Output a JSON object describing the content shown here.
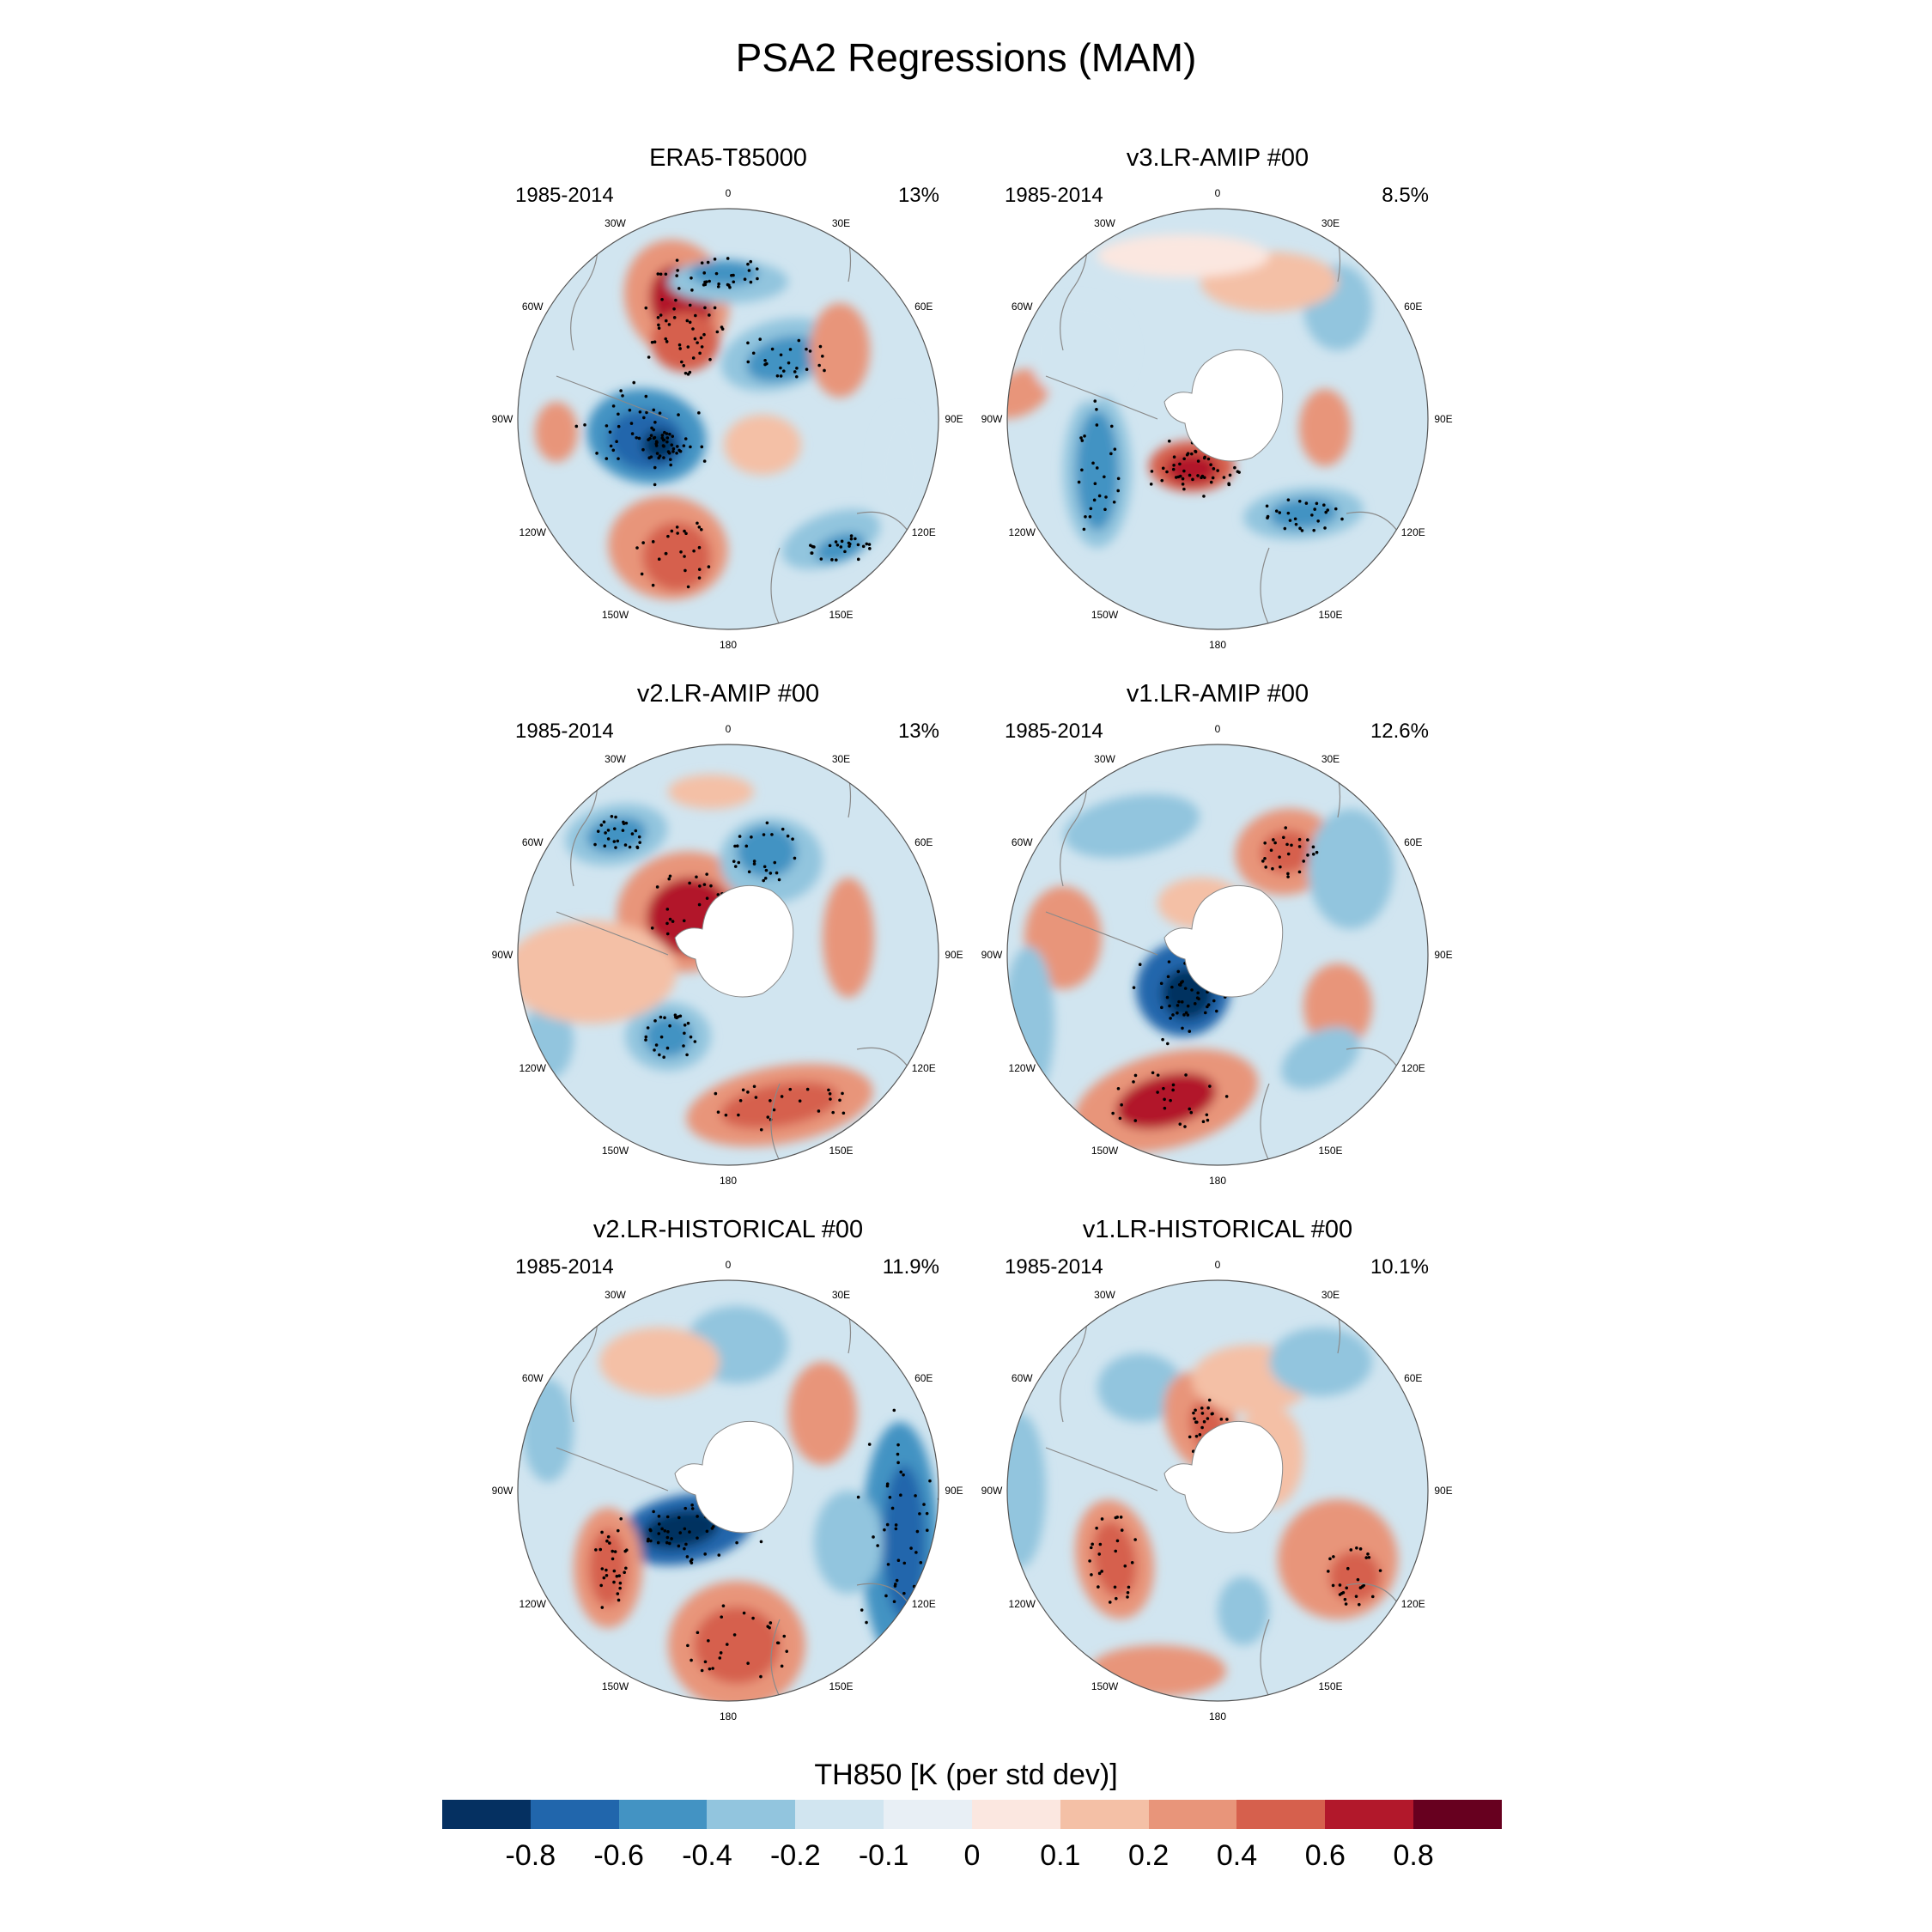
{
  "title": "PSA2 Regressions (MAM)",
  "panels": [
    {
      "title": "ERA5-T85000",
      "period": "1985-2014",
      "variance": "13%"
    },
    {
      "title": "v3.LR-AMIP  #00",
      "period": "1985-2014",
      "variance": "8.5%"
    },
    {
      "title": "v2.LR-AMIP  #00",
      "period": "1985-2014",
      "variance": "13%"
    },
    {
      "title": "v1.LR-AMIP  #00",
      "period": "1985-2014",
      "variance": "12.6%"
    },
    {
      "title": "v2.LR-HISTORICAL  #00",
      "period": "1985-2014",
      "variance": "11.9%"
    },
    {
      "title": "v1.LR-HISTORICAL  #00",
      "period": "1985-2014",
      "variance": "10.1%"
    }
  ],
  "longitude_labels": [
    "0",
    "30E",
    "60E",
    "90E",
    "120E",
    "150E",
    "180",
    "150W",
    "120W",
    "90W",
    "60W",
    "30W"
  ],
  "colorbar": {
    "title": "TH850 [K (per std dev)]",
    "labels": [
      "-0.8",
      "-0.6",
      "-0.4",
      "-0.2",
      "-0.1",
      "0",
      "0.1",
      "0.2",
      "0.4",
      "0.6",
      "0.8"
    ],
    "colors": [
      "#053061",
      "#2166ac",
      "#4393c3",
      "#92c5de",
      "#d1e5f0",
      "#e8eff5",
      "#fbe7e0",
      "#f4c0a6",
      "#e8957a",
      "#d6604d",
      "#b2182b",
      "#67001f"
    ]
  }
}
